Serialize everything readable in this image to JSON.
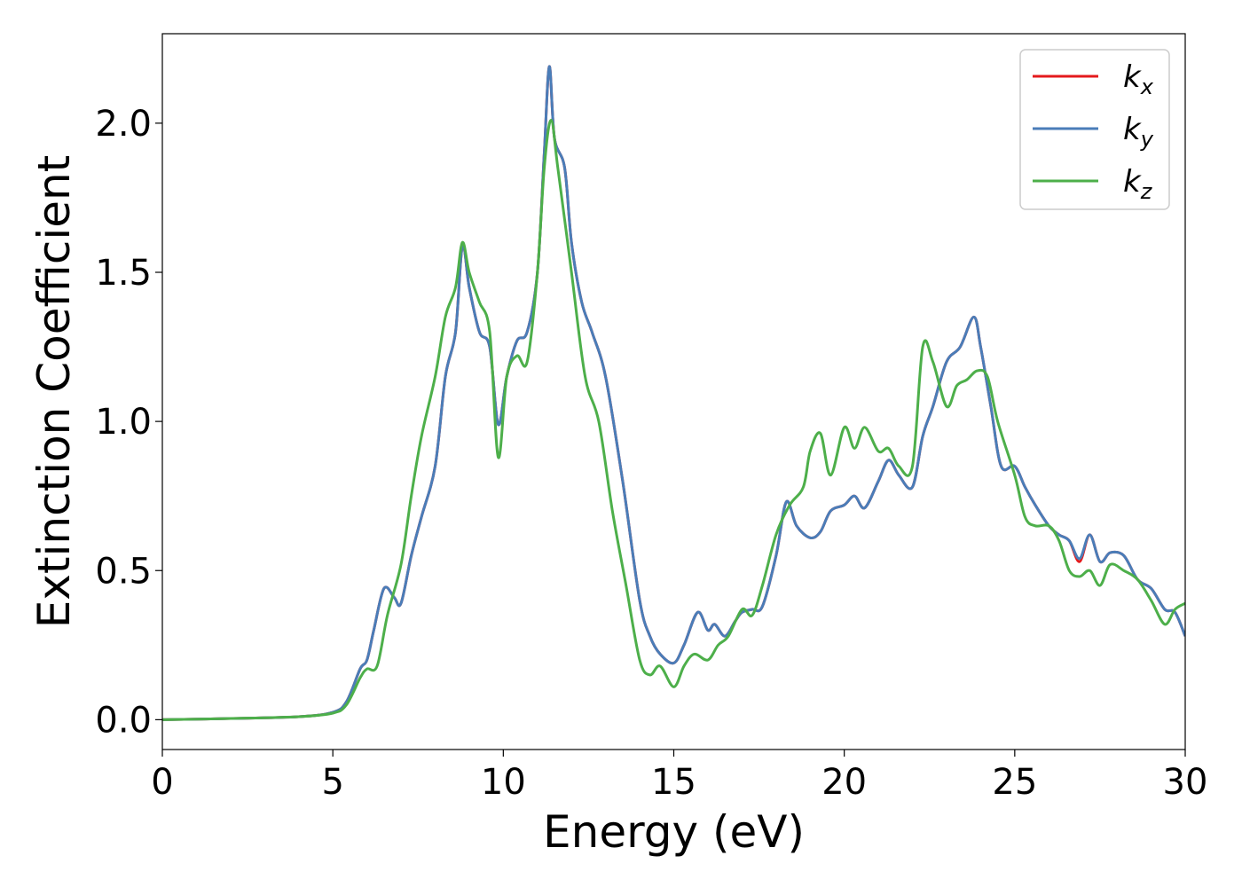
{
  "chart_data": {
    "type": "line",
    "title": "",
    "xlabel": "Energy (eV)",
    "ylabel": "Extinction Coefficient",
    "xlim": [
      0,
      30
    ],
    "ylim": [
      -0.1,
      2.3
    ],
    "xticks": [
      0,
      5,
      10,
      15,
      20,
      25,
      30
    ],
    "yticks": [
      0.0,
      0.5,
      1.0,
      1.5,
      2.0
    ],
    "xtick_labels": [
      "0",
      "5",
      "10",
      "15",
      "20",
      "25",
      "30"
    ],
    "ytick_labels": [
      "0.0",
      "0.5",
      "1.0",
      "1.5",
      "2.0"
    ],
    "grid": false,
    "legend_position": "top-right",
    "series": [
      {
        "name": "k_x",
        "label_main": "k",
        "label_sub": "x",
        "color": "#e41a1c",
        "x": [
          0,
          2,
          4,
          5,
          5.4,
          5.8,
          6.0,
          6.2,
          6.5,
          6.8,
          7.0,
          7.3,
          7.6,
          8.0,
          8.3,
          8.6,
          8.8,
          9.0,
          9.3,
          9.6,
          9.85,
          10.1,
          10.4,
          10.7,
          11.0,
          11.2,
          11.35,
          11.5,
          11.8,
          12.0,
          12.3,
          12.6,
          13.0,
          13.5,
          14.0,
          14.3,
          14.6,
          15.0,
          15.3,
          15.7,
          16.0,
          16.2,
          16.5,
          16.8,
          17.0,
          17.3,
          17.6,
          18.0,
          18.3,
          18.6,
          19.0,
          19.3,
          19.6,
          20.0,
          20.3,
          20.6,
          21.0,
          21.3,
          21.6,
          22.0,
          22.3,
          22.6,
          23.0,
          23.4,
          23.8,
          24.0,
          24.3,
          24.6,
          25.0,
          25.3,
          25.6,
          26.0,
          26.3,
          26.6,
          26.9,
          27.2,
          27.5,
          27.8,
          28.2,
          28.6,
          29.0,
          29.4,
          29.7,
          30.0
        ],
        "values": [
          0.0,
          0.004,
          0.01,
          0.025,
          0.06,
          0.17,
          0.2,
          0.3,
          0.44,
          0.41,
          0.39,
          0.55,
          0.68,
          0.85,
          1.15,
          1.3,
          1.59,
          1.45,
          1.3,
          1.25,
          0.99,
          1.15,
          1.27,
          1.3,
          1.5,
          1.9,
          2.19,
          1.95,
          1.85,
          1.6,
          1.4,
          1.3,
          1.15,
          0.8,
          0.4,
          0.28,
          0.22,
          0.19,
          0.25,
          0.36,
          0.3,
          0.32,
          0.28,
          0.33,
          0.36,
          0.37,
          0.38,
          0.55,
          0.73,
          0.65,
          0.61,
          0.63,
          0.7,
          0.72,
          0.75,
          0.71,
          0.8,
          0.87,
          0.82,
          0.78,
          0.95,
          1.05,
          1.2,
          1.25,
          1.35,
          1.25,
          1.05,
          0.85,
          0.85,
          0.78,
          0.72,
          0.65,
          0.62,
          0.6,
          0.53,
          0.62,
          0.53,
          0.56,
          0.55,
          0.47,
          0.44,
          0.37,
          0.36,
          0.28
        ]
      },
      {
        "name": "k_y",
        "label_main": "k",
        "label_sub": "y",
        "color": "#4a7db8",
        "x": [
          0,
          2,
          4,
          5,
          5.4,
          5.8,
          6.0,
          6.2,
          6.5,
          6.8,
          7.0,
          7.3,
          7.6,
          8.0,
          8.3,
          8.6,
          8.8,
          9.0,
          9.3,
          9.6,
          9.85,
          10.1,
          10.4,
          10.7,
          11.0,
          11.2,
          11.35,
          11.5,
          11.8,
          12.0,
          12.3,
          12.6,
          13.0,
          13.5,
          14.0,
          14.3,
          14.6,
          15.0,
          15.3,
          15.7,
          16.0,
          16.2,
          16.5,
          16.8,
          17.0,
          17.3,
          17.6,
          18.0,
          18.3,
          18.6,
          19.0,
          19.3,
          19.6,
          20.0,
          20.3,
          20.6,
          21.0,
          21.3,
          21.6,
          22.0,
          22.3,
          22.6,
          23.0,
          23.4,
          23.8,
          24.0,
          24.3,
          24.6,
          25.0,
          25.3,
          25.6,
          26.0,
          26.3,
          26.6,
          26.9,
          27.2,
          27.5,
          27.8,
          28.2,
          28.6,
          29.0,
          29.4,
          29.7,
          30.0
        ],
        "values": [
          0.0,
          0.004,
          0.01,
          0.025,
          0.06,
          0.17,
          0.2,
          0.3,
          0.44,
          0.41,
          0.39,
          0.55,
          0.68,
          0.85,
          1.15,
          1.3,
          1.59,
          1.45,
          1.3,
          1.25,
          0.99,
          1.15,
          1.27,
          1.3,
          1.5,
          1.9,
          2.19,
          1.95,
          1.85,
          1.6,
          1.4,
          1.3,
          1.15,
          0.8,
          0.4,
          0.28,
          0.22,
          0.19,
          0.25,
          0.36,
          0.3,
          0.32,
          0.28,
          0.33,
          0.36,
          0.37,
          0.38,
          0.55,
          0.73,
          0.65,
          0.61,
          0.63,
          0.7,
          0.72,
          0.75,
          0.71,
          0.8,
          0.87,
          0.82,
          0.78,
          0.95,
          1.05,
          1.2,
          1.25,
          1.35,
          1.25,
          1.05,
          0.85,
          0.85,
          0.78,
          0.72,
          0.65,
          0.62,
          0.6,
          0.54,
          0.62,
          0.53,
          0.56,
          0.55,
          0.47,
          0.44,
          0.37,
          0.36,
          0.28
        ]
      },
      {
        "name": "k_z",
        "label_main": "k",
        "label_sub": "z",
        "color": "#4daf4a",
        "x": [
          0,
          2,
          4,
          5,
          5.4,
          5.8,
          6.0,
          6.3,
          6.6,
          7.0,
          7.3,
          7.6,
          8.0,
          8.3,
          8.6,
          8.8,
          9.0,
          9.3,
          9.6,
          9.85,
          10.1,
          10.4,
          10.7,
          11.0,
          11.2,
          11.4,
          11.6,
          12.0,
          12.4,
          12.8,
          13.2,
          13.6,
          14.0,
          14.3,
          14.6,
          15.0,
          15.3,
          15.6,
          16.0,
          16.3,
          16.6,
          17.0,
          17.3,
          17.6,
          18.0,
          18.4,
          18.8,
          19.0,
          19.3,
          19.6,
          20.0,
          20.3,
          20.6,
          21.0,
          21.3,
          21.6,
          22.0,
          22.3,
          22.6,
          23.0,
          23.3,
          23.6,
          23.9,
          24.2,
          24.5,
          25.0,
          25.3,
          25.6,
          26.0,
          26.3,
          26.6,
          26.9,
          27.2,
          27.5,
          27.8,
          28.2,
          28.6,
          29.0,
          29.4,
          29.7,
          30.0
        ],
        "values": [
          0.0,
          0.004,
          0.01,
          0.022,
          0.05,
          0.14,
          0.17,
          0.18,
          0.35,
          0.52,
          0.75,
          0.95,
          1.15,
          1.35,
          1.45,
          1.6,
          1.5,
          1.4,
          1.3,
          0.88,
          1.15,
          1.22,
          1.2,
          1.5,
          1.85,
          2.01,
          1.85,
          1.5,
          1.15,
          1.0,
          0.7,
          0.45,
          0.2,
          0.15,
          0.18,
          0.11,
          0.18,
          0.22,
          0.2,
          0.25,
          0.28,
          0.37,
          0.35,
          0.45,
          0.62,
          0.72,
          0.78,
          0.9,
          0.96,
          0.82,
          0.98,
          0.91,
          0.98,
          0.9,
          0.91,
          0.85,
          0.85,
          1.25,
          1.2,
          1.05,
          1.12,
          1.14,
          1.17,
          1.15,
          1.0,
          0.82,
          0.68,
          0.65,
          0.65,
          0.6,
          0.5,
          0.48,
          0.5,
          0.45,
          0.52,
          0.5,
          0.47,
          0.4,
          0.32,
          0.37,
          0.39
        ]
      }
    ]
  }
}
